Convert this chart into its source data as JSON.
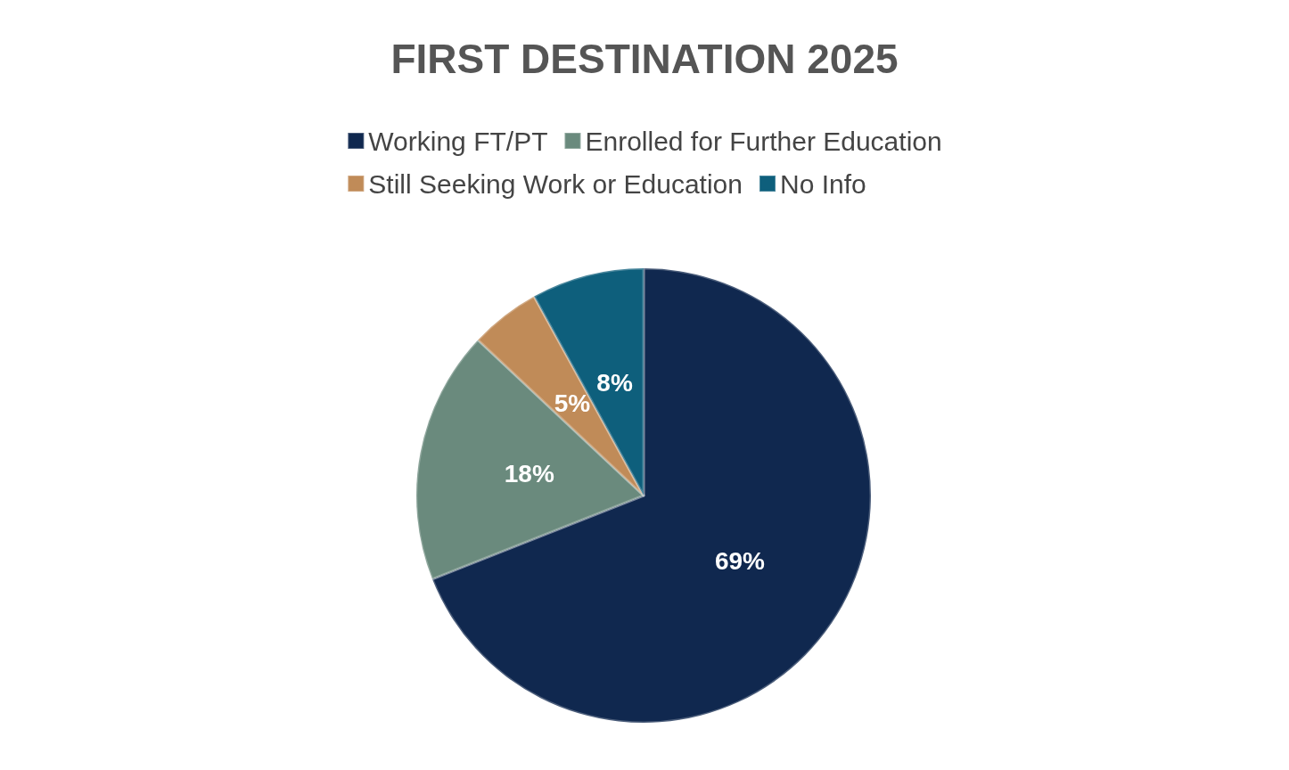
{
  "chart_data": {
    "type": "pie",
    "title": "FIRST DESTINATION 2025",
    "categories": [
      "Working FT/PT",
      "Enrolled for Further Education",
      "Still Seeking Work or Education",
      "No Info"
    ],
    "values": [
      69,
      18,
      5,
      8
    ],
    "colors": [
      "#10284f",
      "#6a8a7d",
      "#c08b58",
      "#0e5f7c"
    ],
    "value_labels": [
      "69%",
      "18%",
      "5%",
      "8%"
    ],
    "legend": "top"
  }
}
